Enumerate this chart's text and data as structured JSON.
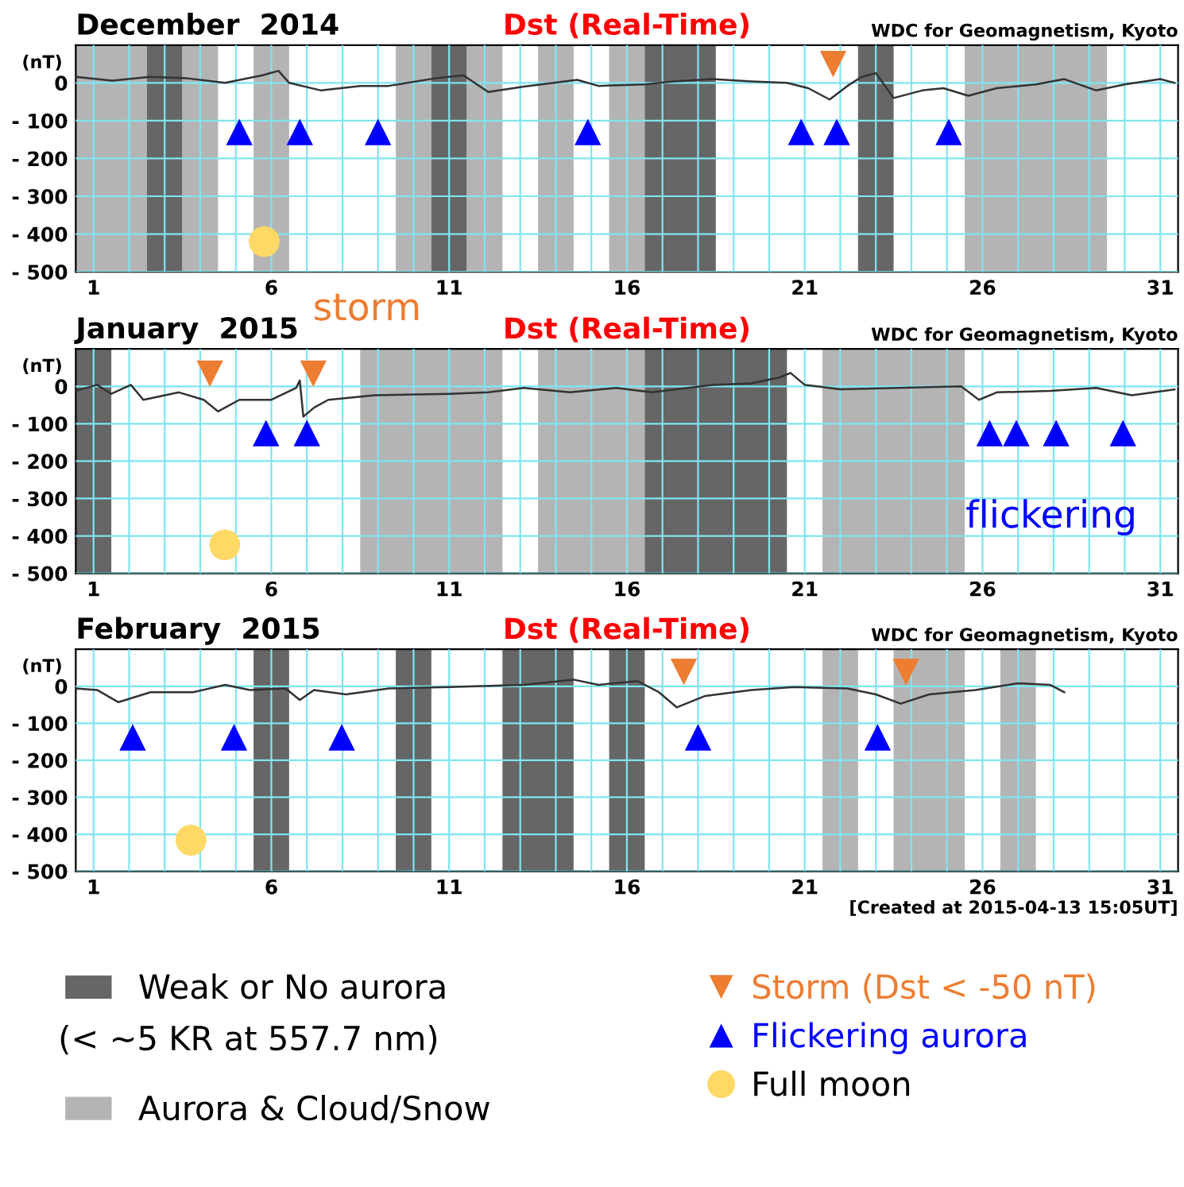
{
  "chart_data": [
    {
      "type": "line",
      "title": "December  2014",
      "subtitle": "Dst (Real-Time)",
      "ylabel": "(nT)",
      "annotations": [
        "WDC for Geomagnetism, Kyoto"
      ],
      "xlim": [
        0.5,
        31.5
      ],
      "xticks": [
        1,
        {
          "value": 2,
          "label": null
        },
        {
          "value": 3,
          "label": null
        },
        {
          "value": 4,
          "label": null
        },
        {
          "value": 5,
          "label": null
        },
        6,
        {
          "value": 7,
          "label": null
        },
        {
          "value": 8,
          "label": null
        },
        {
          "value": 9,
          "label": null
        },
        {
          "value": 10,
          "label": null
        },
        11,
        {
          "value": 12,
          "label": null
        },
        {
          "value": 13,
          "label": null
        },
        {
          "value": 14,
          "label": null
        },
        {
          "value": 15,
          "label": null
        },
        16,
        {
          "value": 17,
          "label": null
        },
        {
          "value": 18,
          "label": null
        },
        {
          "value": 19,
          "label": null
        },
        {
          "value": 20,
          "label": null
        },
        21,
        {
          "value": 22,
          "label": null
        },
        {
          "value": 23,
          "label": null
        },
        {
          "value": 24,
          "label": null
        },
        {
          "value": 25,
          "label": null
        },
        26,
        {
          "value": 27,
          "label": null
        },
        {
          "value": 28,
          "label": null
        },
        {
          "value": 29,
          "label": null
        },
        {
          "value": 30,
          "label": null
        },
        31
      ],
      "ylim": [
        -500,
        100
      ],
      "yticks": [
        {
          "value": -500,
          "label": "- 500"
        },
        {
          "value": -400,
          "label": "- 400"
        },
        {
          "value": -300,
          "label": "- 300"
        },
        {
          "value": -200,
          "label": "- 200"
        },
        {
          "value": -100,
          "label": "- 100"
        },
        0
      ],
      "grid": true,
      "legend": false,
      "bands": [
        {
          "axis": "x",
          "from": 0.5,
          "to": 2.5,
          "color": "#b4b4b4"
        },
        {
          "axis": "x",
          "from": 2.5,
          "to": 3.5,
          "color": "#666666"
        },
        {
          "axis": "x",
          "from": 3.5,
          "to": 4.5,
          "color": "#b4b4b4"
        },
        {
          "axis": "x",
          "from": 5.5,
          "to": 6.5,
          "color": "#b4b4b4"
        },
        {
          "axis": "x",
          "from": 9.5,
          "to": 10.5,
          "color": "#b4b4b4"
        },
        {
          "axis": "x",
          "from": 10.5,
          "to": 11.5,
          "color": "#666666"
        },
        {
          "axis": "x",
          "from": 11.5,
          "to": 12.5,
          "color": "#b4b4b4"
        },
        {
          "axis": "x",
          "from": 13.5,
          "to": 14.5,
          "color": "#b4b4b4"
        },
        {
          "axis": "x",
          "from": 15.5,
          "to": 16.5,
          "color": "#b4b4b4"
        },
        {
          "axis": "x",
          "from": 16.5,
          "to": 18.5,
          "color": "#666666"
        },
        {
          "axis": "x",
          "from": 22.5,
          "to": 23.5,
          "color": "#666666"
        },
        {
          "axis": "x",
          "from": 25.5,
          "to": 29.5,
          "color": "#b4b4b4"
        }
      ],
      "series": [
        {
          "color": "#333333",
          "x": [
            0.5,
            1.53,
            2.58,
            3.64,
            4.7,
            5.75,
            6.2,
            6.5,
            7.4,
            8.5,
            9.3,
            10.6,
            11.4,
            12.1,
            13.1,
            14.6,
            15.2,
            16.5,
            17.3,
            18.4,
            19.5,
            20.5,
            21.1,
            21.7,
            22.2,
            22.6,
            23.0,
            23.5,
            24.3,
            24.9,
            25.6,
            26.4,
            27.5,
            28.3,
            29.2,
            30.0,
            31.0,
            31.4
          ],
          "values": [
            16,
            6,
            16,
            12,
            0,
            20,
            32,
            0,
            -20,
            -8,
            -8,
            12,
            20,
            -24,
            -10,
            8,
            -8,
            -4,
            4,
            10,
            4,
            0,
            -14,
            -44,
            -8,
            16,
            26,
            -40,
            -20,
            -14,
            -34,
            -14,
            -4,
            10,
            -20,
            -4,
            10,
            0
          ]
        },
        {
          "type": "scatter",
          "marker": "triangle",
          "color": "#ed7d31",
          "x": [
            21.8
          ],
          "values": [
            50
          ]
        },
        {
          "type": "scatter",
          "marker": "triangle",
          "color": "#0000ff",
          "x": [
            5.1,
            6.8,
            9.0,
            14.9,
            20.9,
            21.9,
            25.05
          ],
          "values": [
            -130,
            -130,
            -130,
            -130,
            -130,
            -130,
            -130
          ]
        },
        {
          "type": "scatter",
          "marker": "circle",
          "color": "#ffd966",
          "x": [
            5.8
          ],
          "values": [
            -420
          ]
        }
      ]
    },
    {
      "type": "line",
      "title": "January  2015",
      "subtitle": "Dst (Real-Time)",
      "ylabel": "(nT)",
      "annotations": [
        "WDC for Geomagnetism, Kyoto",
        "storm",
        "flickering"
      ],
      "xlim": [
        0.5,
        31.5
      ],
      "xticks": [
        1,
        {
          "value": 2,
          "label": null
        },
        {
          "value": 3,
          "label": null
        },
        {
          "value": 4,
          "label": null
        },
        {
          "value": 5,
          "label": null
        },
        6,
        {
          "value": 7,
          "label": null
        },
        {
          "value": 8,
          "label": null
        },
        {
          "value": 9,
          "label": null
        },
        {
          "value": 10,
          "label": null
        },
        11,
        {
          "value": 12,
          "label": null
        },
        {
          "value": 13,
          "label": null
        },
        {
          "value": 14,
          "label": null
        },
        {
          "value": 15,
          "label": null
        },
        16,
        {
          "value": 17,
          "label": null
        },
        {
          "value": 18,
          "label": null
        },
        {
          "value": 19,
          "label": null
        },
        {
          "value": 20,
          "label": null
        },
        21,
        {
          "value": 22,
          "label": null
        },
        {
          "value": 23,
          "label": null
        },
        {
          "value": 24,
          "label": null
        },
        {
          "value": 25,
          "label": null
        },
        26,
        {
          "value": 27,
          "label": null
        },
        {
          "value": 28,
          "label": null
        },
        {
          "value": 29,
          "label": null
        },
        {
          "value": 30,
          "label": null
        },
        31
      ],
      "ylim": [
        -500,
        100
      ],
      "yticks": [
        {
          "value": -500,
          "label": "- 500"
        },
        {
          "value": -400,
          "label": "- 400"
        },
        {
          "value": -300,
          "label": "- 300"
        },
        {
          "value": -200,
          "label": "- 200"
        },
        {
          "value": -100,
          "label": "- 100"
        },
        0
      ],
      "grid": true,
      "legend": false,
      "bands": [
        {
          "axis": "x",
          "from": 0.5,
          "to": 1.5,
          "color": "#666666"
        },
        {
          "axis": "x",
          "from": 8.5,
          "to": 12.5,
          "color": "#b4b4b4"
        },
        {
          "axis": "x",
          "from": 13.5,
          "to": 16.5,
          "color": "#b4b4b4"
        },
        {
          "axis": "x",
          "from": 16.5,
          "to": 20.5,
          "color": "#666666"
        },
        {
          "axis": "x",
          "from": 21.5,
          "to": 25.5,
          "color": "#b4b4b4"
        }
      ],
      "series": [
        {
          "color": "#333333",
          "x": [
            0.5,
            1.1,
            1.5,
            2.05,
            2.4,
            3.4,
            4.1,
            4.5,
            5.1,
            6.0,
            6.7,
            6.8,
            6.9,
            7.2,
            7.6,
            8.9,
            11.0,
            12.1,
            13.1,
            14.4,
            15.7,
            16.7,
            18.4,
            19.5,
            20.3,
            20.6,
            21.0,
            22.0,
            23.6,
            25.4,
            25.9,
            26.4,
            27.9,
            29.2,
            30.2,
            31.4
          ],
          "values": [
            -12,
            4,
            -20,
            4,
            -36,
            -16,
            -36,
            -67,
            -36,
            -36,
            -4,
            16,
            -81,
            -57,
            -36,
            -24,
            -20,
            -16,
            -4,
            -16,
            -4,
            -16,
            4,
            8,
            24,
            36,
            4,
            -8,
            -4,
            0,
            -36,
            -16,
            -12,
            -4,
            -24,
            -8
          ]
        },
        {
          "type": "scatter",
          "marker": "triangle",
          "color": "#ed7d31",
          "x": [
            4.27,
            7.18
          ],
          "values": [
            34,
            34
          ]
        },
        {
          "type": "scatter",
          "marker": "triangle",
          "color": "#0000ff",
          "x": [
            5.85,
            7.0,
            26.2,
            26.95,
            28.07,
            29.95
          ],
          "values": [
            -125,
            -125,
            -125,
            -125,
            -125,
            -125
          ]
        },
        {
          "type": "scatter",
          "marker": "circle",
          "color": "#ffd966",
          "x": [
            4.69
          ],
          "values": [
            -424
          ]
        }
      ]
    },
    {
      "type": "line",
      "title": "February  2015",
      "subtitle": "Dst (Real-Time)",
      "ylabel": "(nT)",
      "annotations": [
        "WDC for Geomagnetism, Kyoto",
        "[Created at 2015-04-13 15:05UT]",
        "(< ~5 KR at 557.7 nm)"
      ],
      "xlim": [
        0.5,
        31.5
      ],
      "xticks": [
        1,
        {
          "value": 2,
          "label": null
        },
        {
          "value": 3,
          "label": null
        },
        {
          "value": 4,
          "label": null
        },
        {
          "value": 5,
          "label": null
        },
        6,
        {
          "value": 7,
          "label": null
        },
        {
          "value": 8,
          "label": null
        },
        {
          "value": 9,
          "label": null
        },
        {
          "value": 10,
          "label": null
        },
        11,
        {
          "value": 12,
          "label": null
        },
        {
          "value": 13,
          "label": null
        },
        {
          "value": 14,
          "label": null
        },
        {
          "value": 15,
          "label": null
        },
        16,
        {
          "value": 17,
          "label": null
        },
        {
          "value": 18,
          "label": null
        },
        {
          "value": 19,
          "label": null
        },
        {
          "value": 20,
          "label": null
        },
        21,
        {
          "value": 22,
          "label": null
        },
        {
          "value": 23,
          "label": null
        },
        {
          "value": 24,
          "label": null
        },
        {
          "value": 25,
          "label": null
        },
        26,
        {
          "value": 27,
          "label": null
        },
        {
          "value": 28,
          "label": null
        },
        {
          "value": 29,
          "label": null
        },
        {
          "value": 30,
          "label": null
        },
        31
      ],
      "ylim": [
        -500,
        100
      ],
      "yticks": [
        {
          "value": -500,
          "label": "- 500"
        },
        {
          "value": -400,
          "label": "- 400"
        },
        {
          "value": -300,
          "label": "- 300"
        },
        {
          "value": -200,
          "label": "- 200"
        },
        {
          "value": -100,
          "label": "- 100"
        },
        0
      ],
      "grid": true,
      "legend": "bottom",
      "bands": [
        {
          "axis": "x",
          "from": 5.5,
          "to": 6.5,
          "color": "#666666",
          "label": "Weak or No aurora"
        },
        {
          "axis": "x",
          "from": 9.5,
          "to": 10.5,
          "color": "#666666"
        },
        {
          "axis": "x",
          "from": 12.5,
          "to": 14.5,
          "color": "#666666"
        },
        {
          "axis": "x",
          "from": 15.5,
          "to": 16.5,
          "color": "#666666"
        },
        {
          "axis": "x",
          "from": 21.5,
          "to": 22.5,
          "color": "#b4b4b4",
          "label": "Aurora & Cloud/Snow"
        },
        {
          "axis": "x",
          "from": 23.5,
          "to": 25.5,
          "color": "#b4b4b4"
        },
        {
          "axis": "x",
          "from": 26.5,
          "to": 27.5,
          "color": "#b4b4b4"
        }
      ],
      "series": [
        {
          "color": "#333333",
          "x": [
            0.5,
            1.1,
            1.7,
            2.6,
            3.8,
            4.7,
            5.4,
            6.4,
            6.8,
            7.2,
            8.1,
            9.3,
            11.0,
            13.1,
            14.5,
            15.2,
            16.3,
            16.9,
            17.4,
            18.2,
            19.5,
            20.7,
            22.2,
            23.0,
            23.7,
            24.5,
            25.8,
            27.0,
            27.9,
            28.3
          ],
          "values": [
            -6,
            -10,
            -43,
            -16,
            -16,
            4,
            -10,
            -6,
            -37,
            -10,
            -22,
            -6,
            -2,
            4,
            18,
            4,
            14,
            -16,
            -57,
            -26,
            -10,
            -2,
            -6,
            -22,
            -47,
            -22,
            -10,
            8,
            4,
            -16
          ]
        },
        {
          "name": "Storm (Dst < -50 nT)",
          "type": "scatter",
          "marker": "triangle",
          "color": "#ed7d31",
          "x": [
            17.6,
            23.85
          ],
          "values": [
            39,
            39
          ]
        },
        {
          "name": "Flickering aurora",
          "type": "scatter",
          "marker": "triangle",
          "color": "#0000ff",
          "x": [
            2.1,
            4.95,
            7.98,
            18.0,
            23.05
          ],
          "values": [
            -138,
            -138,
            -138,
            -138,
            -138
          ]
        },
        {
          "name": "Full moon",
          "type": "scatter",
          "marker": "circle",
          "color": "#ffd966",
          "x": [
            3.74
          ],
          "values": [
            -416
          ]
        }
      ]
    }
  ]
}
